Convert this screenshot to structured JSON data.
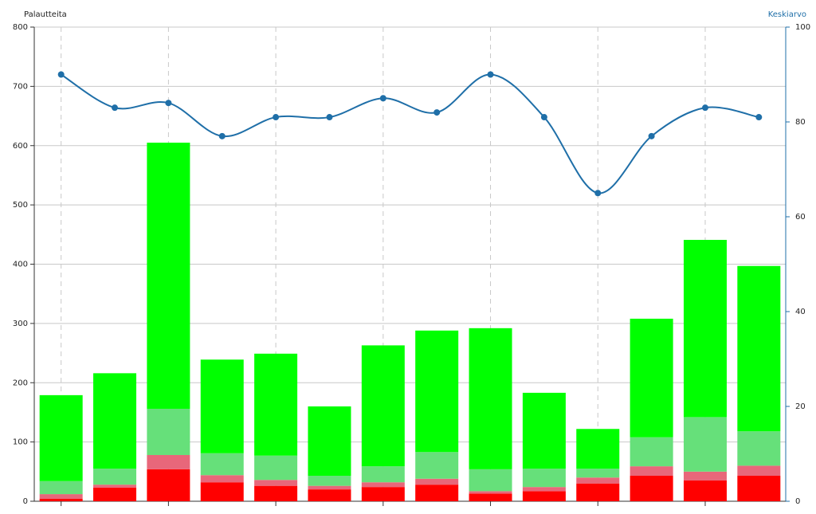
{
  "chart_data": {
    "type": "bar-line",
    "y_axis_label": "Palautteita",
    "y2_axis_label": "Keskiarvo",
    "categories": [
      null,
      null,
      null,
      null,
      null,
      null,
      null,
      null,
      null,
      null,
      null,
      null,
      null,
      null
    ],
    "ylim": [
      0,
      800
    ],
    "yticks": [
      0,
      100,
      200,
      300,
      400,
      500,
      600,
      700,
      800
    ],
    "y2lim": [
      0,
      100
    ],
    "y2ticks": [
      0,
      20,
      40,
      60,
      80,
      100
    ],
    "grid": true,
    "stacked": true,
    "series": [
      {
        "color": "#ff0000",
        "values": [
          4,
          23,
          54,
          32,
          26,
          20,
          24,
          28,
          13,
          17,
          30,
          43,
          35,
          43
        ]
      },
      {
        "color": "#e8677a",
        "values": [
          8,
          5,
          24,
          12,
          10,
          6,
          8,
          10,
          4,
          7,
          10,
          16,
          15,
          17
        ]
      },
      {
        "color": "#66e07a",
        "values": [
          22,
          27,
          78,
          37,
          41,
          17,
          27,
          45,
          37,
          31,
          15,
          49,
          92,
          58
        ]
      },
      {
        "color": "#00ff00",
        "values": [
          145,
          161,
          449,
          158,
          172,
          117,
          204,
          205,
          238,
          128,
          67,
          200,
          299,
          279
        ]
      },
      {
        "type": "line",
        "axis": "y2",
        "color": "#1f6fa8",
        "values": [
          90,
          83,
          84,
          77,
          81,
          81,
          85,
          82,
          90,
          81,
          65,
          77,
          83,
          81
        ]
      }
    ]
  }
}
